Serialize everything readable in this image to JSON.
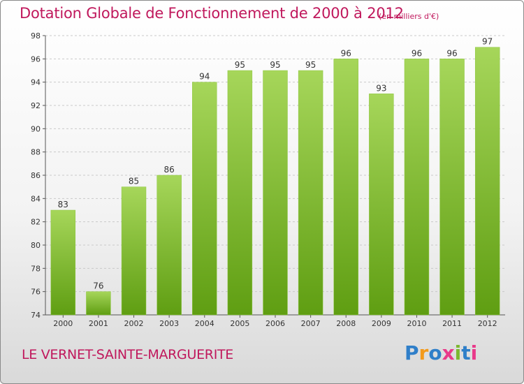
{
  "title": "Dotation Globale de Fonctionnement de 2000 à 2012",
  "subtitle": "(en milliers d'€)",
  "town": "LE VERNET-SAINTE-MARGUERITE",
  "logo": {
    "text": "Proxiti",
    "colors": [
      "#2f7fc9",
      "#f39a1b",
      "#2f7fc9",
      "#e9398a",
      "#7cb82f",
      "#2f7fc9",
      "#e9398a"
    ]
  },
  "colors": {
    "title": "#c0185c",
    "bar_light": "#a6d65a",
    "bar_dark": "#5f9e12"
  },
  "chart_data": {
    "type": "bar",
    "categories": [
      "2000",
      "2001",
      "2002",
      "2003",
      "2004",
      "2005",
      "2006",
      "2007",
      "2008",
      "2009",
      "2010",
      "2011",
      "2012"
    ],
    "values": [
      83,
      76,
      85,
      86,
      94,
      95,
      95,
      95,
      96,
      93,
      96,
      96,
      97
    ],
    "ylim": [
      74,
      98
    ],
    "yticks": [
      74,
      76,
      78,
      80,
      82,
      84,
      86,
      88,
      90,
      92,
      94,
      96,
      98
    ],
    "grid": true,
    "title": "Dotation Globale de Fonctionnement de 2000 à 2012",
    "xlabel": "",
    "ylabel": ""
  }
}
